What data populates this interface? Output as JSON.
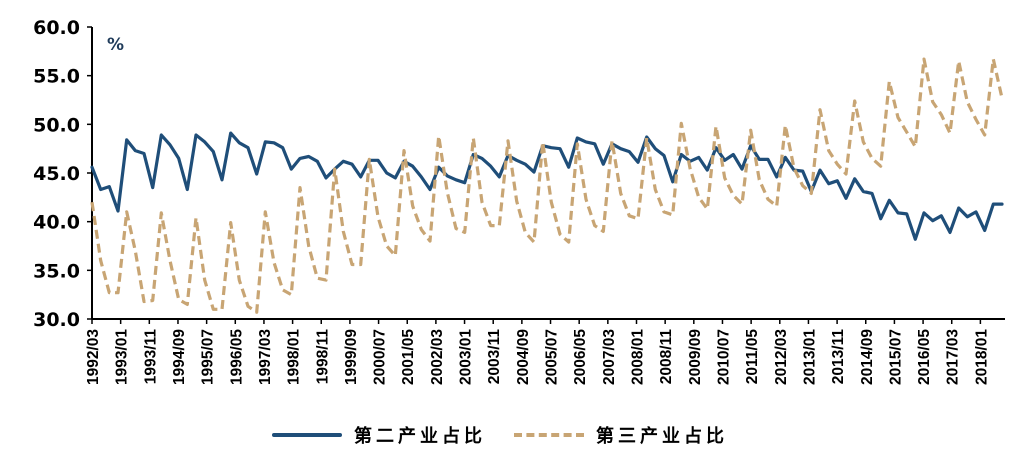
{
  "chart_data": {
    "type": "line",
    "title": "",
    "xlabel": "",
    "ylabel": "",
    "unit_label": "%",
    "ylim": [
      30.0,
      60.0
    ],
    "yticks": [
      "60.0",
      "55.0",
      "50.0",
      "45.0",
      "40.0",
      "35.0",
      "30.0"
    ],
    "xtick_labels": [
      "1992/03",
      "1993/01",
      "1993/11",
      "1994/09",
      "1995/07",
      "1996/05",
      "1997/03",
      "1998/01",
      "1998/11",
      "1999/09",
      "2000/07",
      "2001/05",
      "2002/03",
      "2003/01",
      "2003/11",
      "2004/09",
      "2005/07",
      "2006/05",
      "2007/03",
      "2008/01",
      "2008/11",
      "2009/09",
      "2010/07",
      "2011/05",
      "2012/03",
      "2013/01",
      "2013/11",
      "2014/09",
      "2015/07",
      "2016/05",
      "2017/03",
      "2018/01"
    ],
    "x_frequency": "quarterly",
    "x_start": "1992Q1",
    "x_end": "2018Q2",
    "grid": false,
    "legend_position": "bottom",
    "series": [
      {
        "name": "第二产业占比",
        "style": "solid",
        "color": "#1f4e79",
        "values": [
          45.6,
          43.3,
          43.6,
          41.1,
          48.4,
          47.3,
          47.0,
          43.5,
          48.9,
          47.9,
          46.5,
          43.3,
          48.9,
          48.2,
          47.2,
          44.3,
          49.1,
          48.1,
          47.6,
          44.9,
          48.2,
          48.1,
          47.6,
          45.4,
          46.5,
          46.7,
          46.2,
          44.5,
          45.4,
          46.2,
          45.9,
          44.6,
          46.3,
          46.3,
          45.0,
          44.5,
          46.2,
          45.7,
          44.6,
          43.3,
          45.6,
          44.7,
          44.3,
          44.0,
          46.9,
          46.5,
          45.7,
          44.6,
          46.8,
          46.3,
          45.9,
          45.1,
          47.8,
          47.6,
          47.5,
          45.6,
          48.6,
          48.2,
          48.0,
          45.9,
          48.0,
          47.5,
          47.2,
          46.1,
          48.7,
          47.5,
          46.8,
          44.1,
          46.9,
          46.2,
          46.6,
          45.3,
          47.6,
          46.3,
          46.9,
          45.4,
          47.8,
          46.4,
          46.4,
          44.6,
          46.6,
          45.3,
          45.2,
          43.1,
          45.3,
          43.9,
          44.2,
          42.4,
          44.4,
          43.1,
          42.9,
          40.3,
          42.2,
          40.9,
          40.8,
          38.2,
          40.9,
          40.1,
          40.6,
          38.9,
          41.4,
          40.5,
          41.0,
          39.1,
          41.8,
          41.8
        ]
      },
      {
        "name": "第三产业占比",
        "style": "dashed",
        "color": "#c8a574",
        "values": [
          42.0,
          36.0,
          32.7,
          32.7,
          41.0,
          37.0,
          31.8,
          31.9,
          40.9,
          36.0,
          32.0,
          31.5,
          40.4,
          34.0,
          31.0,
          31.0,
          39.9,
          34.0,
          31.3,
          30.7,
          41.0,
          35.8,
          33.0,
          32.5,
          43.5,
          37.5,
          34.2,
          34.0,
          45.4,
          39.0,
          35.6,
          35.6,
          46.4,
          40.5,
          37.5,
          36.5,
          47.3,
          41.6,
          39.2,
          38.0,
          48.8,
          43.0,
          39.3,
          38.9,
          48.6,
          42.0,
          39.6,
          39.6,
          48.3,
          42.1,
          38.9,
          37.9,
          48.2,
          42.0,
          38.7,
          37.9,
          48.0,
          42.3,
          39.6,
          39.0,
          48.3,
          42.9,
          40.6,
          40.3,
          48.6,
          43.3,
          41.0,
          40.7,
          50.1,
          45.5,
          42.5,
          41.3,
          49.8,
          44.5,
          42.7,
          41.8,
          49.4,
          44.3,
          42.3,
          41.6,
          49.9,
          45.5,
          43.7,
          42.9,
          51.5,
          47.3,
          45.9,
          44.9,
          52.4,
          48.2,
          46.5,
          45.7,
          54.4,
          50.7,
          49.2,
          47.7,
          56.7,
          52.3,
          51.0,
          49.1,
          56.5,
          52.3,
          50.5,
          48.9,
          56.7,
          52.7
        ]
      }
    ]
  },
  "legend": {
    "items": [
      {
        "label": "第二产业占比",
        "style": "solid"
      },
      {
        "label": "第三产业占比",
        "style": "dashed"
      }
    ]
  }
}
